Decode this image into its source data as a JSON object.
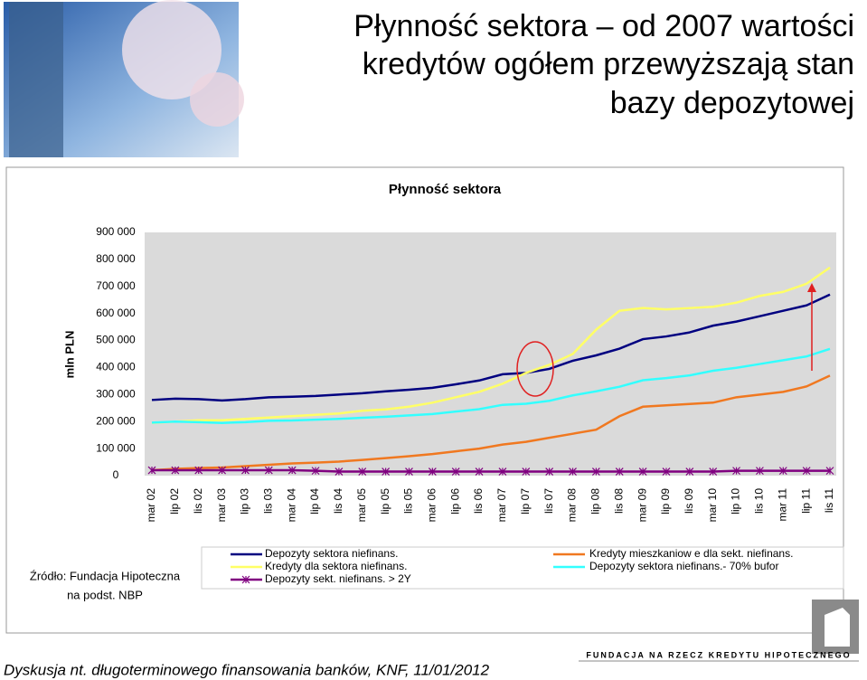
{
  "slide_title": [
    "Płynność sektora – od 2007 wartości",
    "kredytów ogółem przewyższają stan",
    "bazy depozytowej"
  ],
  "source": [
    "Źródło: Fundacja Hipoteczna",
    "na podst. NBP"
  ],
  "footer": "Dyskusja nt. długoterminowego finansowania banków, KNF, 11/01/2012",
  "logo": "FUNDACJA NA RZECZ KREDYTU HIPOTECZNEGO",
  "chart_data": {
    "type": "line",
    "title": "Płynność sektora",
    "y_label": "mln PLN",
    "categories": [
      "mar 02",
      "lip 02",
      "lis 02",
      "mar 03",
      "lip 03",
      "lis 03",
      "mar 04",
      "lip 04",
      "lis 04",
      "mar 05",
      "lip 05",
      "lis 05",
      "mar 06",
      "lip 06",
      "lis 06",
      "mar 07",
      "lip 07",
      "lis 07",
      "mar 08",
      "lip 08",
      "lis 08",
      "mar 09",
      "lip 09",
      "lis 09",
      "mar 10",
      "lip 10",
      "lis 10",
      "mar 11",
      "lip 11",
      "lis 11"
    ],
    "series": [
      {
        "name": "Depozyty sektora niefinans.",
        "color": "#000080",
        "values": [
          280000,
          285000,
          283000,
          278000,
          283000,
          290000,
          292000,
          295000,
          300000,
          305000,
          312000,
          318000,
          325000,
          338000,
          352000,
          375000,
          380000,
          395000,
          425000,
          445000,
          470000,
          505000,
          515000,
          530000,
          555000,
          570000,
          590000,
          610000,
          630000,
          670000
        ]
      },
      {
        "name": "Kredyty mieszkaniow e dla sekt. niefinans.",
        "color": "#f07820",
        "values": [
          20000,
          25000,
          28000,
          30000,
          35000,
          40000,
          45000,
          48000,
          52000,
          58000,
          65000,
          72000,
          80000,
          90000,
          100000,
          115000,
          125000,
          140000,
          155000,
          170000,
          220000,
          255000,
          260000,
          265000,
          270000,
          290000,
          300000,
          310000,
          330000,
          370000
        ]
      },
      {
        "name": "Kredyty dla sektora niefinans.",
        "color": "#ffff66",
        "values": [
          195000,
          200000,
          205000,
          205000,
          210000,
          215000,
          220000,
          225000,
          230000,
          240000,
          245000,
          255000,
          270000,
          290000,
          310000,
          340000,
          380000,
          410000,
          450000,
          540000,
          610000,
          620000,
          615000,
          620000,
          625000,
          640000,
          665000,
          680000,
          710000,
          770000
        ]
      },
      {
        "name": "Depozyty sektora niefinans.- 70% bufor",
        "color": "#33ffff",
        "values": [
          196000,
          200000,
          198000,
          195000,
          198000,
          203000,
          204000,
          207000,
          210000,
          214000,
          218000,
          223000,
          228000,
          237000,
          246000,
          262000,
          266000,
          277000,
          297000,
          312000,
          329000,
          353000,
          361000,
          371000,
          388000,
          399000,
          413000,
          427000,
          441000,
          469000
        ]
      },
      {
        "name": "Depozyty sekt. niefinans. > 2Y",
        "color": "#800080",
        "marker": "star",
        "values": [
          20000,
          20000,
          20000,
          20000,
          20000,
          20000,
          20000,
          18000,
          15000,
          15000,
          15000,
          15000,
          15000,
          15000,
          15000,
          15000,
          15000,
          15000,
          15000,
          15000,
          15000,
          15000,
          15000,
          15000,
          15000,
          18000,
          18000,
          18000,
          18000,
          18000
        ]
      }
    ],
    "ylim": [
      0,
      900000
    ],
    "yticks": [
      0,
      {
        "value": 100000,
        "label": "100 000"
      },
      {
        "value": 200000,
        "label": "200 000"
      },
      {
        "value": 300000,
        "label": "300 000"
      },
      {
        "value": 400000,
        "label": "400 000"
      },
      {
        "value": 500000,
        "label": "500 000"
      },
      {
        "value": 600000,
        "label": "600 000"
      },
      {
        "value": 700000,
        "label": "700 000"
      },
      {
        "value": 800000,
        "label": "800 000"
      },
      {
        "value": 900000,
        "label": "900 000"
      }
    ],
    "grid": false
  }
}
